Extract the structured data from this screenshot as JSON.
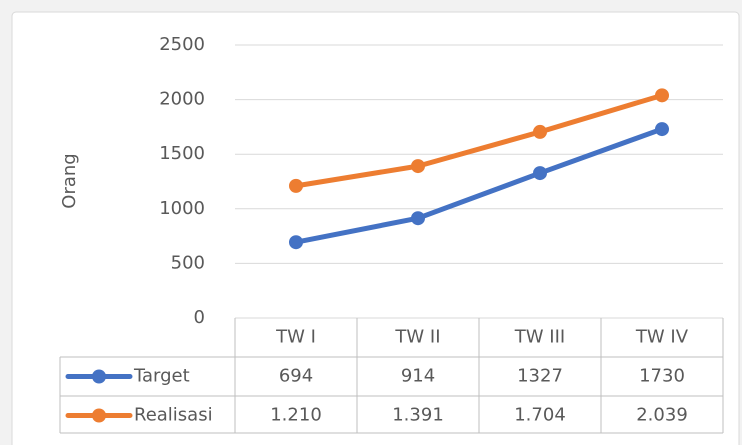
{
  "chart_data": {
    "type": "line",
    "y_label": "Orang",
    "categories": [
      "TW I",
      "TW II",
      "TW III",
      "TW IV"
    ],
    "series": [
      {
        "name": "Target",
        "color": "#4472c4",
        "values": [
          694,
          914,
          1327,
          1730
        ]
      },
      {
        "name": "Realisasi",
        "color": "#ed7d31",
        "values": [
          1210,
          1391,
          1704,
          2039
        ],
        "value_labels": [
          "1.210",
          "1.391",
          "1.704",
          "2.039"
        ]
      }
    ],
    "ylim": [
      0,
      2500
    ],
    "yticks": [
      0,
      500,
      1000,
      1500,
      2000,
      2500
    ],
    "grid": true,
    "data_table": true
  }
}
